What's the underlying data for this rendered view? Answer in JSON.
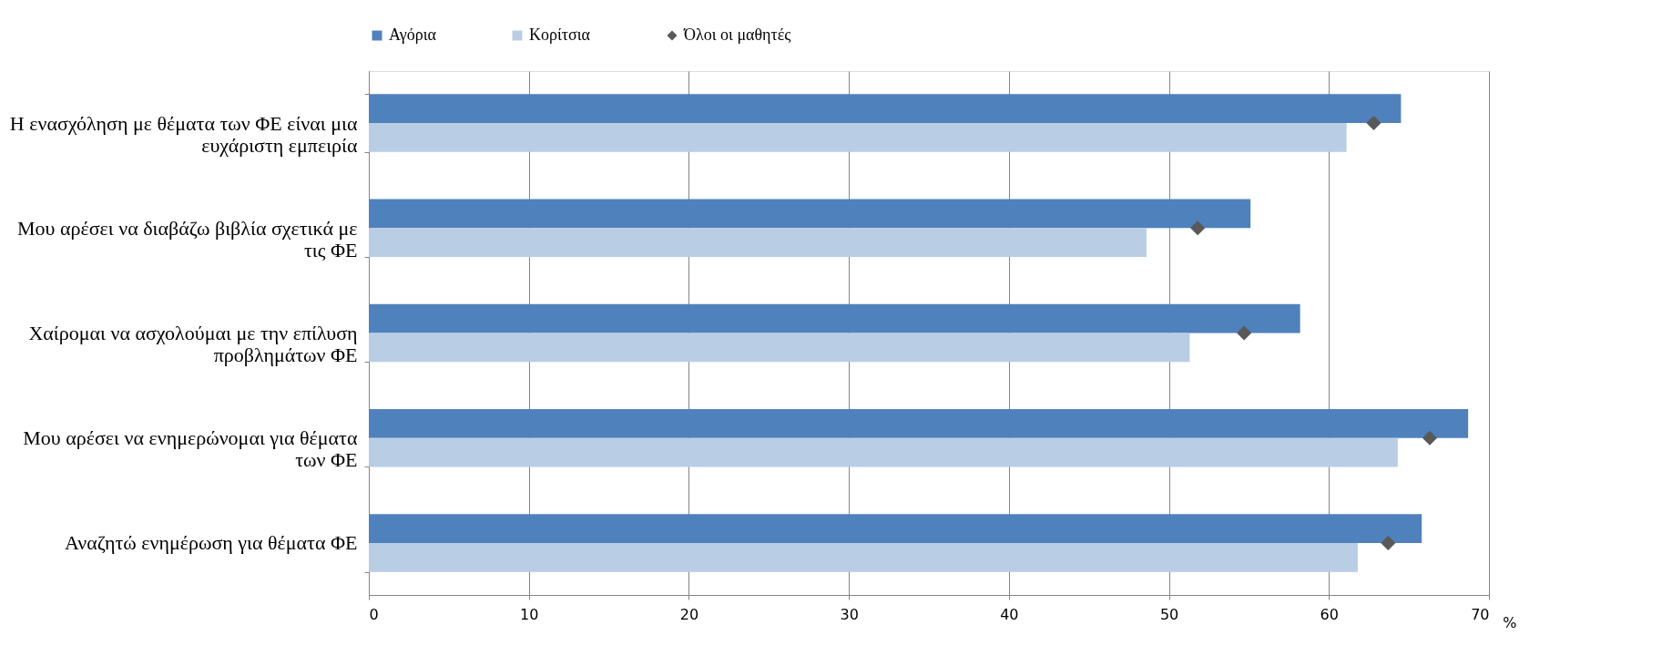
{
  "chart_data": {
    "type": "bar",
    "orientation": "horizontal",
    "xlabel": "%",
    "categories": [
      "Η ενασχόληση με θέματα των ΦΕ είναι μια ευχάριστη εμπειρία",
      "Μου αρέσει να διαβάζω βιβλία σχετικά με τις ΦΕ",
      "Χαίρομαι να ασχολούμαι με την επίλυση προβλημάτων ΦΕ",
      "Μου αρέσει να ενημερώνομαι για θέματα των ΦΕ",
      "Αναζητώ ενημέρωση για θέματα ΦΕ"
    ],
    "series": [
      {
        "name": "Αγόρια",
        "color": "#4f81bd",
        "values": [
          64.5,
          55.1,
          58.2,
          68.7,
          65.8
        ]
      },
      {
        "name": "Κορίτσια",
        "color": "#b9cde5",
        "values": [
          61.1,
          48.6,
          51.3,
          64.3,
          61.8
        ]
      },
      {
        "name": "Όλοι οι μαθητές",
        "type": "scatter",
        "marker": "diamond",
        "color": "#595959",
        "values": [
          62.8,
          51.8,
          54.7,
          66.3,
          63.7
        ]
      }
    ],
    "xlim": [
      0,
      70
    ],
    "xticks": [
      0,
      10,
      20,
      30,
      40,
      50,
      60,
      70
    ],
    "grid": "x",
    "legend": "top"
  }
}
